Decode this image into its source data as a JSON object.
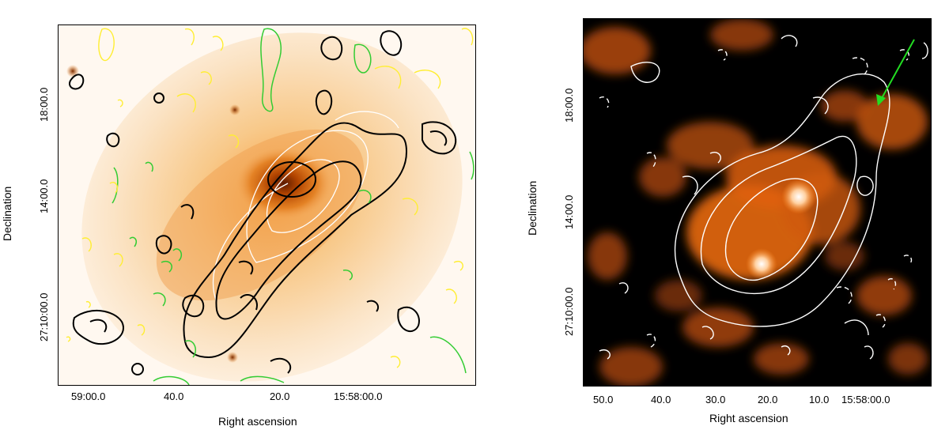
{
  "left_panel": {
    "x_ticks": [
      "59:00.0",
      "40.0",
      "20.0",
      "15:58:00.0"
    ],
    "y_ticks": [
      "18:00.0",
      "14:00.0",
      "27:10:00.0"
    ],
    "x_label": "Right ascension",
    "y_label": "Declination",
    "colors": {
      "contour_black": "#000000",
      "contour_white": "#ffffff",
      "contour_green": "#33cc33",
      "contour_yellow": "#ffee33",
      "map_core": "#d05a00"
    }
  },
  "right_panel": {
    "x_ticks": [
      "50.0",
      "40.0",
      "30.0",
      "20.0",
      "10.0",
      "15:58:00.0"
    ],
    "y_ticks": [
      "18:00.0",
      "14:00.0",
      "27:10:00.0"
    ],
    "x_label": "Right ascension",
    "y_label": "Declination",
    "colors": {
      "background": "#000000",
      "emission": "#ff7a18",
      "contour": "#ffffff",
      "arrow": "#22dd22"
    }
  }
}
